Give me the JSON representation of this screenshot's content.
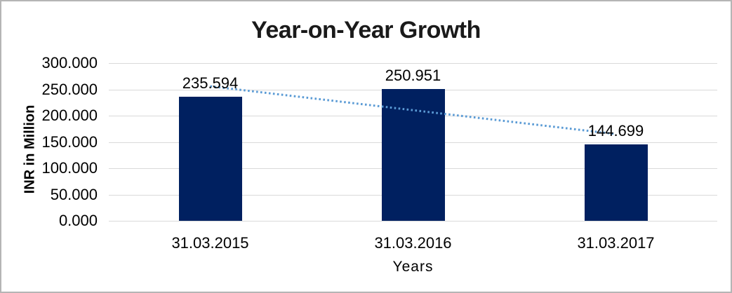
{
  "chart_data": {
    "type": "bar",
    "title": "Year-on-Year Growth",
    "xlabel": "Years",
    "ylabel": "INR in Million",
    "categories": [
      "31.03.2015",
      "31.03.2016",
      "31.03.2017"
    ],
    "values": [
      235.594,
      250.951,
      144.699
    ],
    "data_labels": [
      "235.594",
      "250.951",
      "144.699"
    ],
    "y_ticks": [
      {
        "value": 0,
        "label": "0.000"
      },
      {
        "value": 50,
        "label": "50.000"
      },
      {
        "value": 100,
        "label": "100.000"
      },
      {
        "value": 150,
        "label": "150.000"
      },
      {
        "value": 200,
        "label": "200.000"
      },
      {
        "value": 250,
        "label": "250.000"
      },
      {
        "value": 300,
        "label": "300.000"
      }
    ],
    "ylim": [
      0,
      300
    ],
    "grid": true,
    "legend": false,
    "trendline": {
      "type": "linear",
      "style": "dotted"
    },
    "colors": {
      "bar": "#002060",
      "trendline": "#5b9bd5",
      "gridline": "#d9d9d9",
      "text": "#000000",
      "frame_border": "#b5b5b5",
      "background": "#ffffff"
    }
  }
}
